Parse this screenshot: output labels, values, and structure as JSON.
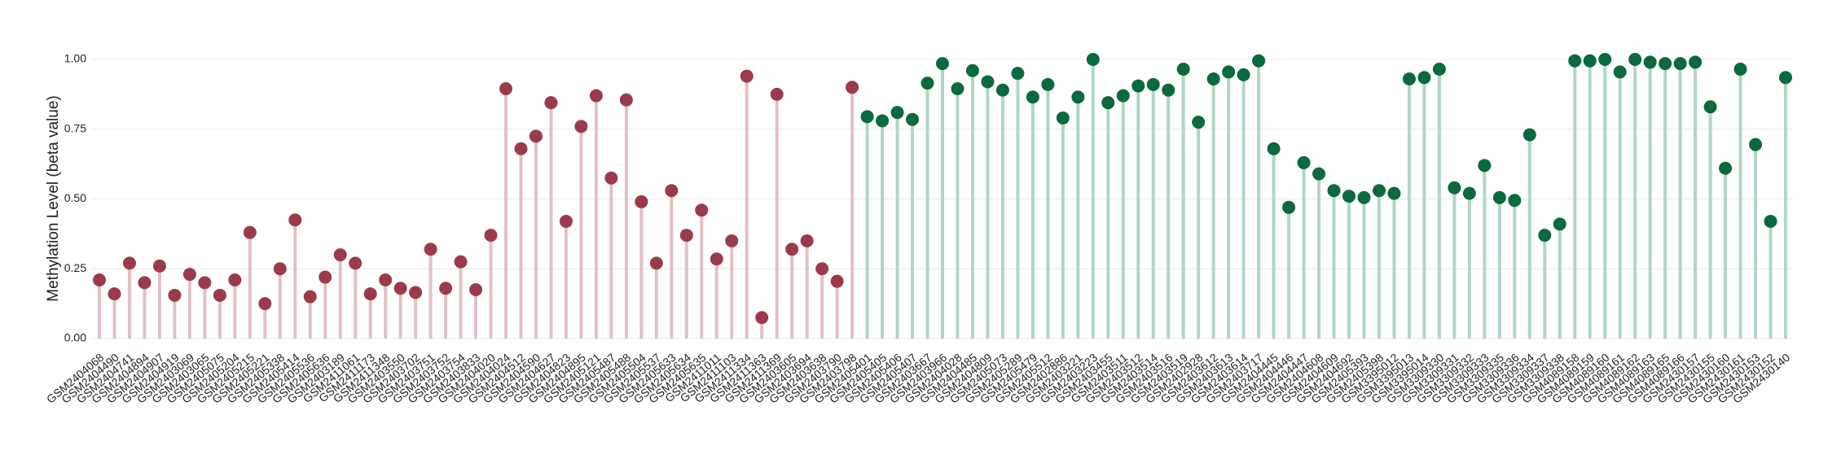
{
  "chart_data": {
    "type": "lollipop",
    "y_label": "Methylation Level (beta value)",
    "ylim": [
      0,
      1.0
    ],
    "yticks": [
      {
        "value": 0,
        "label": "0.00"
      },
      {
        "value": 0.25,
        "label": "0.25"
      },
      {
        "value": 0.5,
        "label": "0.50"
      },
      {
        "value": 0.75,
        "label": "0.75"
      },
      {
        "value": 1.0,
        "label": "1.00"
      }
    ],
    "grid": true,
    "series": [
      {
        "color": "#9b3b4a",
        "stem_color": "#e2c0c6",
        "categories": [
          "GSM2404068",
          "GSM2404490",
          "GSM2404741",
          "GSM2404894",
          "GSM2404907",
          "GSM2404919",
          "GSM2403069",
          "GSM2403065",
          "GSM2405075",
          "GSM2405204",
          "GSM2405215",
          "GSM2405221",
          "GSM2405338",
          "GSM2405414",
          "GSM2405536",
          "GSM2405636",
          "GSM2403189",
          "GSM2411061",
          "GSM2411173",
          "GSM2411348",
          "GSM2403550",
          "GSM2403702",
          "GSM2403751",
          "GSM2403752",
          "GSM2403754",
          "GSM2403833",
          "GSM2404020",
          "GSM2404024",
          "GSM2404512",
          "GSM2404590",
          "GSM2404627",
          "GSM2404823",
          "GSM2404895",
          "GSM2405121",
          "GSM2405487",
          "GSM2405488",
          "GSM2405504",
          "GSM2405537",
          "GSM2405633",
          "GSM2405634",
          "GSM2405635",
          "GSM2411011",
          "GSM2411103",
          "GSM2411334",
          "GSM2411363",
          "GSM2411369",
          "GSM2403605",
          "GSM2403694",
          "GSM2403638",
          "GSM2403790",
          "GSM2403798"
        ],
        "values": [
          0.21,
          0.16,
          0.27,
          0.2,
          0.26,
          0.155,
          0.23,
          0.2,
          0.155,
          0.21,
          0.38,
          0.125,
          0.25,
          0.425,
          0.15,
          0.22,
          0.3,
          0.27,
          0.16,
          0.21,
          0.18,
          0.165,
          0.32,
          0.18,
          0.275,
          0.175,
          0.37,
          0.895,
          0.68,
          0.725,
          0.845,
          0.42,
          0.76,
          0.87,
          0.575,
          0.855,
          0.49,
          0.27,
          0.53,
          0.37,
          0.46,
          0.285,
          0.35,
          0.94,
          0.075,
          0.875,
          0.32,
          0.35,
          0.25,
          0.205,
          0.9
        ]
      },
      {
        "color": "#0b6a3d",
        "stem_color": "#b0d6c5",
        "categories": [
          "GSM2405401",
          "GSM2405405",
          "GSM2405406",
          "GSM2405407",
          "GSM2403667",
          "GSM2403966",
          "GSM2404028",
          "GSM2404485",
          "GSM2404809",
          "GSM2405073",
          "GSM2405289",
          "GSM2405479",
          "GSM2405512",
          "GSM2402886",
          "GSM2403221",
          "GSM2403223",
          "GSM2403455",
          "GSM2403511",
          "GSM2403512",
          "GSM2403514",
          "GSM2403516",
          "GSM2403519",
          "GSM2402928",
          "GSM2403612",
          "GSM2403613",
          "GSM2403614",
          "GSM2403717",
          "GSM2404445",
          "GSM2404446",
          "GSM2404447",
          "GSM2404608",
          "GSM2404609",
          "GSM2404692",
          "GSM2405393",
          "GSM2405398",
          "GSM3395012",
          "GSM3395013",
          "GSM3395014",
          "GSM3309330",
          "GSM3309331",
          "GSM3309332",
          "GSM3309333",
          "GSM3309335",
          "GSM3309336",
          "GSM3309334",
          "GSM3309337",
          "GSM3309338",
          "GSM4089158",
          "GSM4089159",
          "GSM4089160",
          "GSM4089161",
          "GSM4089162",
          "GSM4089163",
          "GSM4089165",
          "GSM4089166",
          "GSM2430157",
          "GSM2430155",
          "GSM2430160",
          "GSM2430161",
          "GSM2430153",
          "GSM2430152",
          "GSM2430140"
        ],
        "values": [
          0.795,
          0.78,
          0.81,
          0.785,
          0.915,
          0.985,
          0.895,
          0.96,
          0.92,
          0.89,
          0.95,
          0.865,
          0.91,
          0.79,
          0.865,
          1.0,
          0.845,
          0.87,
          0.905,
          0.91,
          0.89,
          0.965,
          0.775,
          0.93,
          0.955,
          0.945,
          0.995,
          0.68,
          0.47,
          0.63,
          0.59,
          0.53,
          0.51,
          0.505,
          0.53,
          0.52,
          0.93,
          0.935,
          0.965,
          0.54,
          0.52,
          0.62,
          0.505,
          0.495,
          0.73,
          0.37,
          0.41,
          0.995,
          0.995,
          1.0,
          0.955,
          1.0,
          0.99,
          0.985,
          0.985,
          0.99,
          0.83,
          0.61,
          0.965,
          0.695,
          0.42,
          0.935
        ]
      }
    ]
  }
}
